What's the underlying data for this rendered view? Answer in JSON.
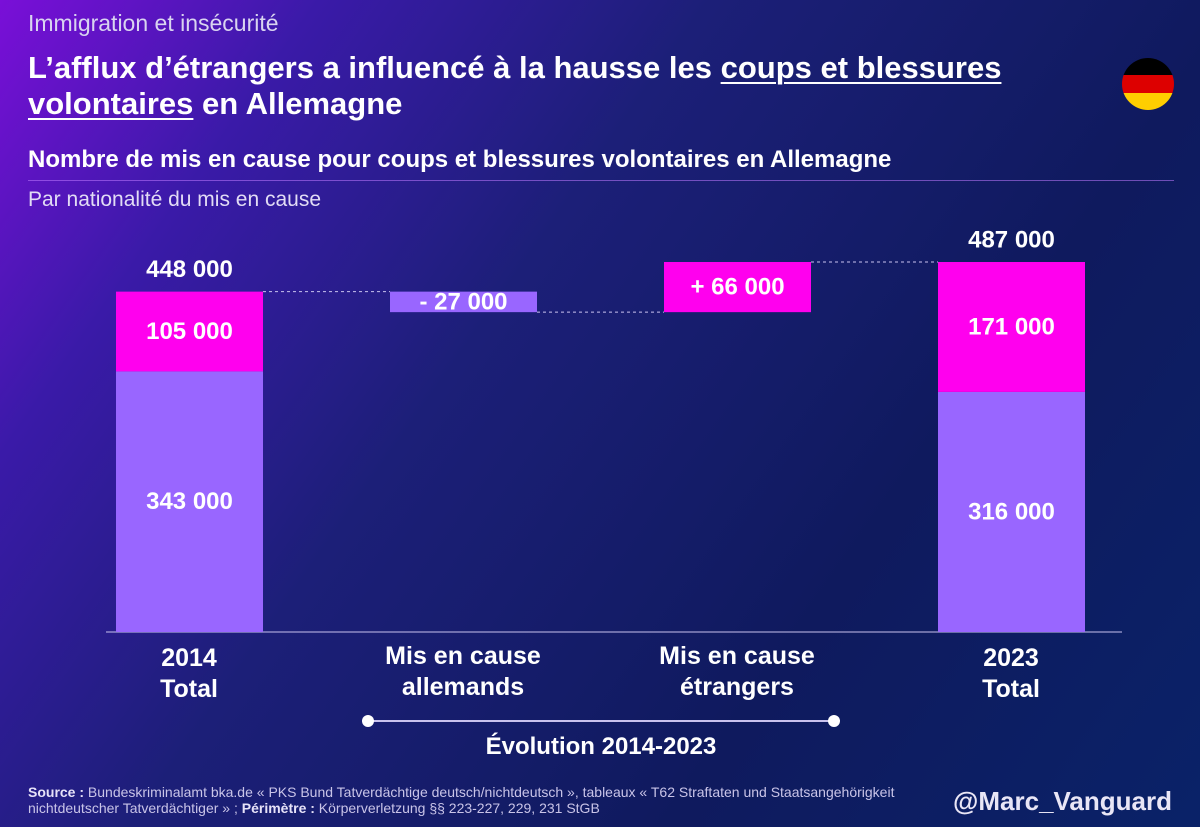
{
  "header": {
    "kicker": "Immigration et insécurité",
    "title_part1": "L’afflux d’étrangers a influencé à la hausse les ",
    "title_underlined_1": "coups et blessures",
    "title_underlined_2": "volontaires",
    "title_part2": " en Allemagne"
  },
  "flag": {
    "icon": "germany-flag-icon",
    "colors": [
      "#000000",
      "#dd0000",
      "#ffce00"
    ]
  },
  "subtitle": "Nombre de mis en cause pour coups et blessures volontaires en Allemagne",
  "caption": "Par nationalité du mis en cause",
  "chart_data": {
    "type": "waterfall",
    "unit": "mis en cause",
    "ylim": [
      0,
      487000
    ],
    "colors": {
      "allemands": "#9966ff",
      "etrangers": "#ff00ee"
    },
    "categories": [
      {
        "lines": [
          "2014",
          "Total"
        ]
      },
      {
        "lines": [
          "Mis en cause",
          "allemands"
        ]
      },
      {
        "lines": [
          "Mis en cause",
          "étrangers"
        ]
      },
      {
        "lines": [
          "2023",
          "Total"
        ]
      }
    ],
    "bars": [
      {
        "kind": "total",
        "total": 448000,
        "total_label": "448 000",
        "segments": [
          {
            "series": "allemands",
            "value": 343000,
            "label": "343 000"
          },
          {
            "series": "etrangers",
            "value": 105000,
            "label": "105 000"
          }
        ]
      },
      {
        "kind": "delta",
        "series": "allemands",
        "start": 448000,
        "value": -27000,
        "label": "- 27 000"
      },
      {
        "kind": "delta",
        "series": "etrangers",
        "start": 421000,
        "value": 66000,
        "label": "+ 66 000"
      },
      {
        "kind": "total",
        "total": 487000,
        "total_label": "487 000",
        "segments": [
          {
            "series": "allemands",
            "value": 316000,
            "label": "316 000"
          },
          {
            "series": "etrangers",
            "value": 171000,
            "label": "171 000"
          }
        ]
      }
    ]
  },
  "evolution_label": "Évolution 2014-2023",
  "source": {
    "source_label": "Source :",
    "source_text": " Bundeskriminalamt bka.de « PKS Bund Tatverdächtige deutsch/nichtdeutsch », tableaux « T62 Straftaten und Staatsangehörigkeit nichtdeutscher Tatverdächtiger »  ; ",
    "perimetre_label": "Périmètre :",
    "perimetre_text": " Körperverletzung §§ 223-227, 229, 231 StGB"
  },
  "handle": "@Marc_Vanguard"
}
